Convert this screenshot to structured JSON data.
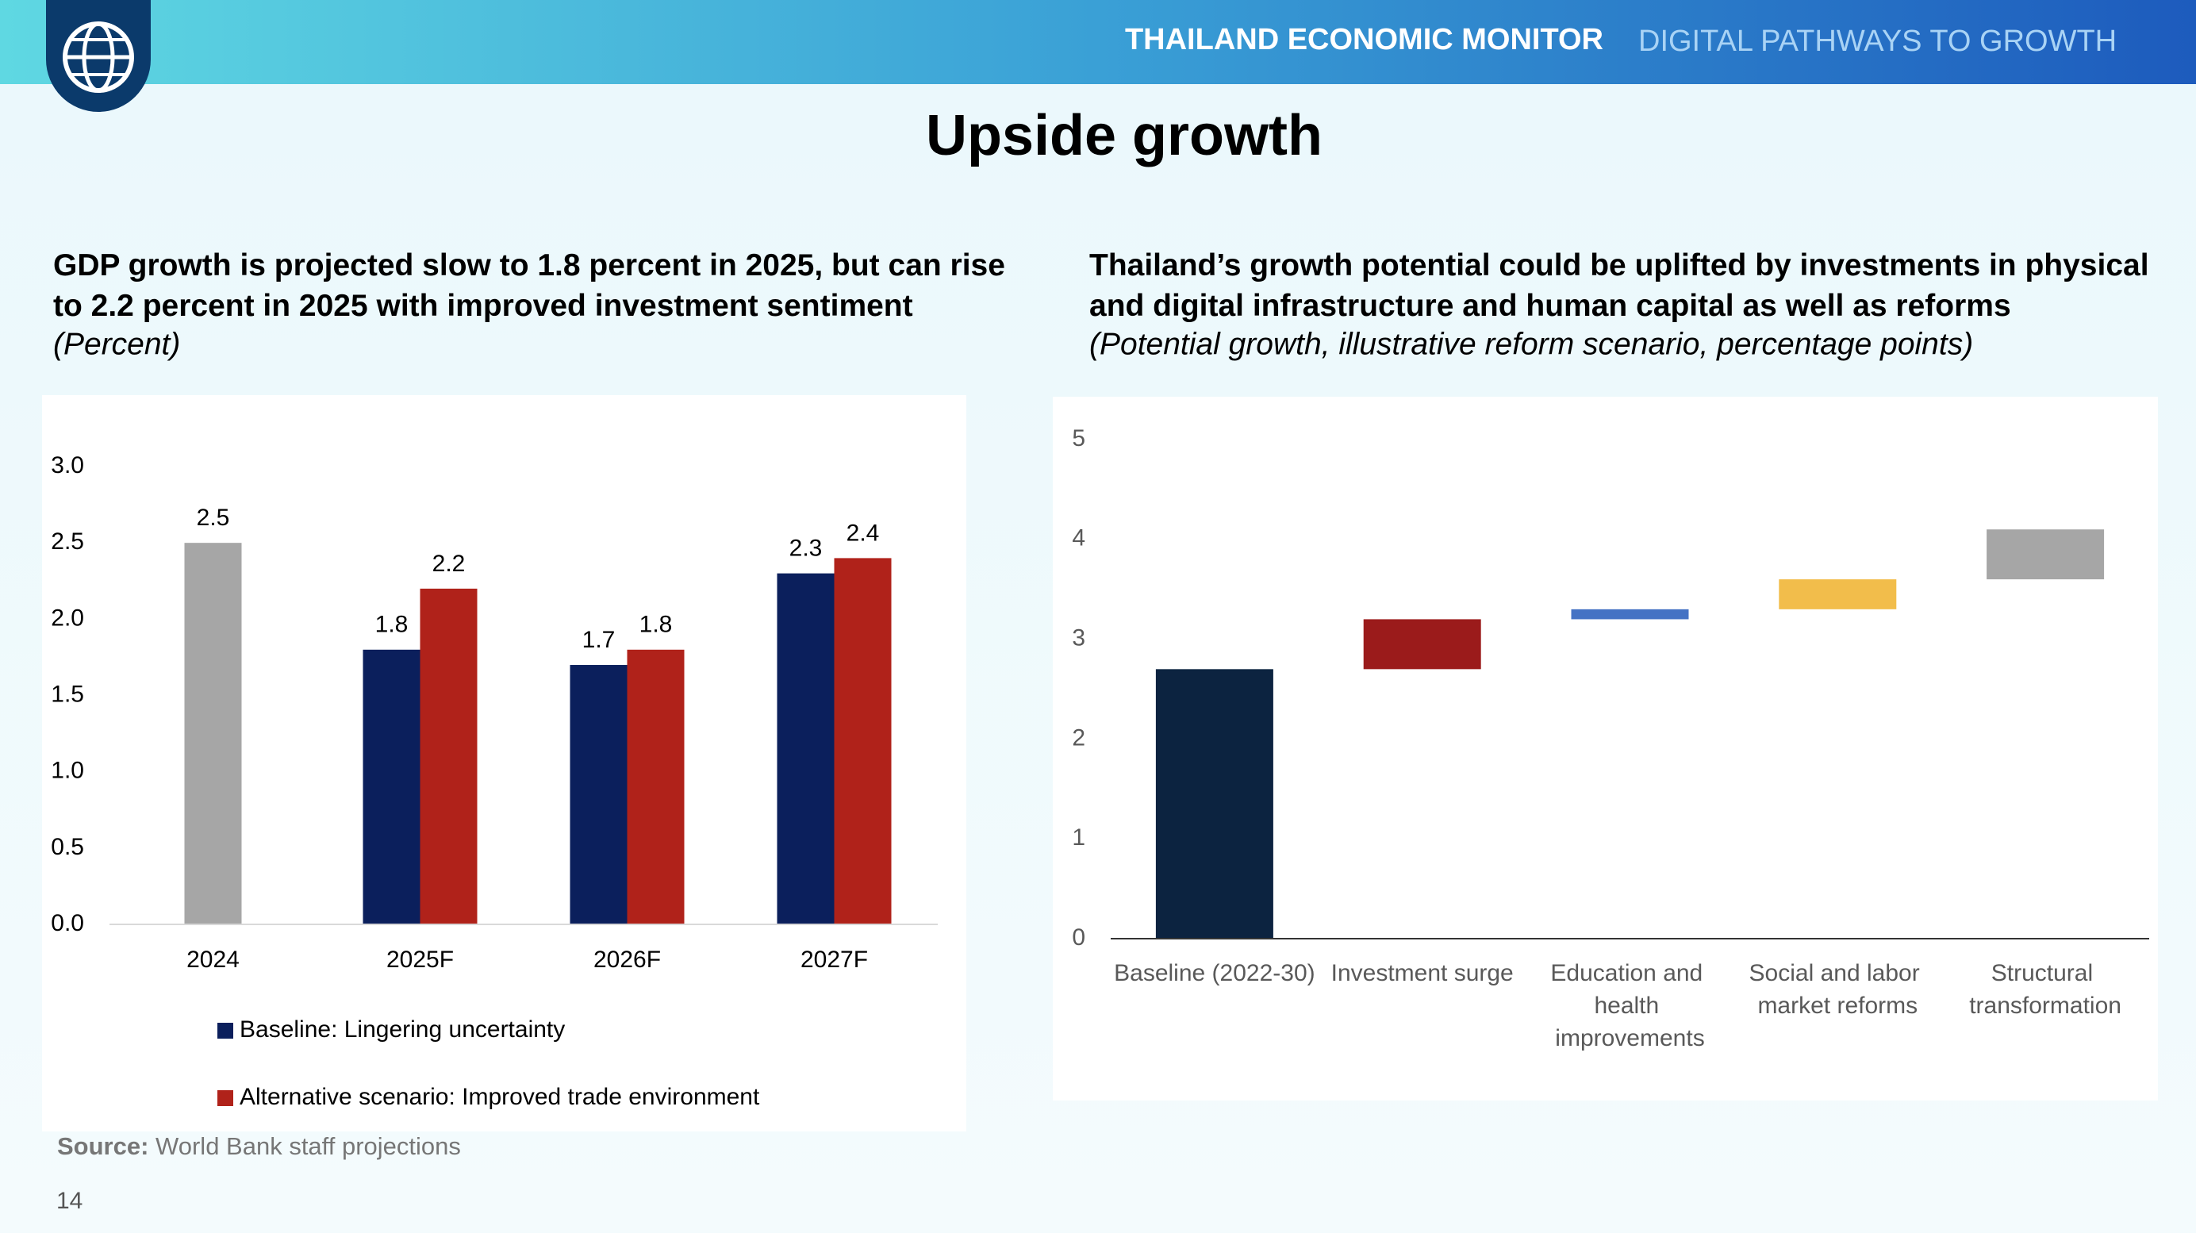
{
  "header": {
    "title": "THAILAND ECONOMIC MONITOR",
    "subtitle": "DIGITAL PATHWAYS TO GROWTH"
  },
  "title": "Upside growth",
  "chart_data": [
    {
      "type": "bar",
      "title": "GDP growth is projected slow to 1.8 percent in 2025, but can rise to 2.2 percent in 2025 with improved investment sentiment",
      "subtitle": "(Percent)",
      "categories": [
        "2024",
        "2025F",
        "2026F",
        "2027F"
      ],
      "series": [
        {
          "name": "Baseline: Lingering uncertainty",
          "color": "#0b1f5c",
          "colors": [
            "#a6a6a6",
            "#0b1f5c",
            "#0b1f5c",
            "#0b1f5c"
          ],
          "values": [
            2.5,
            1.8,
            1.7,
            2.3
          ]
        },
        {
          "name": "Alternative scenario: Improved trade environment",
          "color": "#b0221a",
          "values": [
            null,
            2.2,
            1.8,
            2.4
          ]
        }
      ],
      "ylim": [
        0,
        3
      ],
      "yticks": [
        {
          "value": 0,
          "label": "0.0"
        },
        0.5,
        {
          "value": 1,
          "label": "1.0"
        },
        1.5,
        {
          "value": 2,
          "label": "2.0"
        },
        2.5,
        {
          "value": 3,
          "label": "3.0"
        }
      ],
      "legend": "bottom"
    },
    {
      "type": "waterfall",
      "title": "Thailand’s growth potential could be uplifted by investments in physical and digital infrastructure and human capital as well as reforms",
      "subtitle": "(Potential growth, illustrative reform scenario, percentage points)",
      "categories": [
        "Baseline (2022-30)",
        "Investment surge",
        "Education and health improvements",
        "Social and labor market reforms",
        "Structural transformation"
      ],
      "values": [
        2.7,
        0.5,
        0.1,
        0.3,
        0.5
      ],
      "colors": [
        "#0c2340",
        "#9b1b1b",
        "#4472c4",
        "#f2bd4b",
        "#a6a6a6"
      ],
      "ylim": [
        0,
        5
      ],
      "yticks": [
        0,
        1,
        2,
        3,
        4,
        5
      ]
    }
  ],
  "source": {
    "label": "Source:",
    "text": "World Bank staff projections"
  },
  "page_number": "14"
}
